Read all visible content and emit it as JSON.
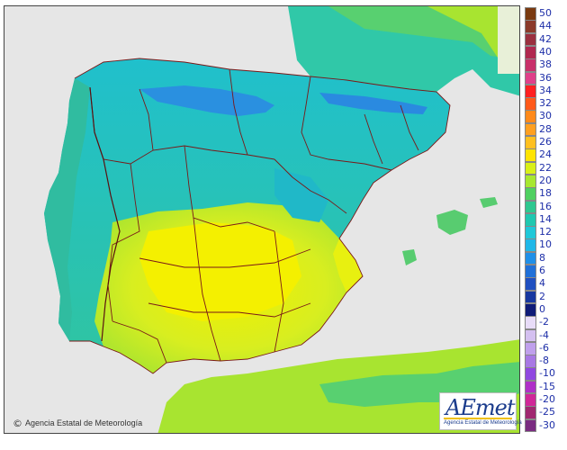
{
  "credit_text": "Agencia Estatal de Meteorología",
  "credit_symbol": "©",
  "logo": {
    "word": "AEmet",
    "subtitle": "Agencia Estatal de Meteorología"
  },
  "legend": [
    {
      "label": "50",
      "color": "#7a3a10"
    },
    {
      "label": "44",
      "color": "#8b3a2a"
    },
    {
      "label": "42",
      "color": "#9b3040"
    },
    {
      "label": "40",
      "color": "#b02850"
    },
    {
      "label": "38",
      "color": "#c8306a"
    },
    {
      "label": "36",
      "color": "#e0408a"
    },
    {
      "label": "34",
      "color": "#ff2020"
    },
    {
      "label": "32",
      "color": "#ff5a1a"
    },
    {
      "label": "30",
      "color": "#ff8a1a"
    },
    {
      "label": "28",
      "color": "#ffa020"
    },
    {
      "label": "26",
      "color": "#ffc020"
    },
    {
      "label": "24",
      "color": "#ffe400"
    },
    {
      "label": "22",
      "color": "#d9f018"
    },
    {
      "label": "20",
      "color": "#a8e830"
    },
    {
      "label": "18",
      "color": "#50d060"
    },
    {
      "label": "16",
      "color": "#30c890"
    },
    {
      "label": "14",
      "color": "#20c8b0"
    },
    {
      "label": "12",
      "color": "#20c8d8"
    },
    {
      "label": "10",
      "color": "#20b8e8"
    },
    {
      "label": "8",
      "color": "#2090e8"
    },
    {
      "label": "6",
      "color": "#2070d8"
    },
    {
      "label": "4",
      "color": "#2050c0"
    },
    {
      "label": "2",
      "color": "#1838a0"
    },
    {
      "label": "0",
      "color": "#101c78"
    },
    {
      "label": "-2",
      "color": "#e8dcf8"
    },
    {
      "label": "-4",
      "color": "#d4c0f0"
    },
    {
      "label": "-6",
      "color": "#c0a0ec"
    },
    {
      "label": "-8",
      "color": "#a878e4"
    },
    {
      "label": "-10",
      "color": "#9048e0"
    },
    {
      "label": "-15",
      "color": "#b030c8"
    },
    {
      "label": "-20",
      "color": "#d02898"
    },
    {
      "label": "-25",
      "color": "#a02870"
    },
    {
      "label": "-30",
      "color": "#7a2c80"
    }
  ]
}
